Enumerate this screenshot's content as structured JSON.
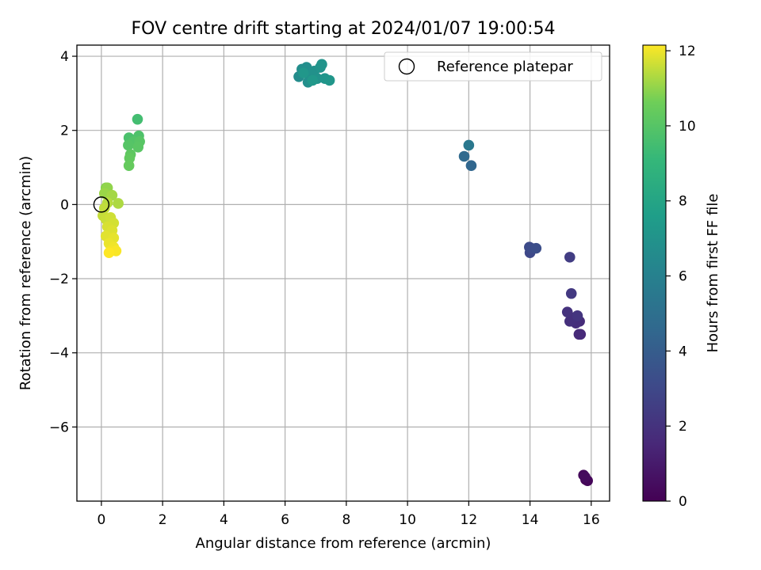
{
  "chart_data": {
    "type": "scatter",
    "title": "FOV centre drift starting at 2024/01/07 19:00:54",
    "xlabel": "Angular distance from reference (arcmin)",
    "ylabel": "Rotation from reference (arcmin)",
    "xlim": [
      -0.8,
      16.6
    ],
    "ylim": [
      -8.0,
      4.3
    ],
    "xticks": [
      0,
      2,
      4,
      6,
      8,
      10,
      12,
      14,
      16
    ],
    "yticks": [
      -6,
      -4,
      -2,
      0,
      2,
      4
    ],
    "ytick_labels": [
      "−6",
      "−4",
      "−2",
      "0",
      "2",
      "4"
    ],
    "grid": true,
    "legend": {
      "position": "top-right",
      "entries": [
        "Reference platepar"
      ]
    },
    "reference_point": {
      "x": 0,
      "y": 0,
      "marker": "open-circle",
      "label": "Reference platepar"
    },
    "colorbar": {
      "label": "Hours from first FF file",
      "colormap": "viridis",
      "range": [
        0,
        12.15
      ],
      "ticks": [
        0,
        2,
        4,
        6,
        8,
        10,
        12
      ]
    },
    "points": [
      {
        "x": 15.82,
        "y": -7.42,
        "hours": 0.1
      },
      {
        "x": 15.88,
        "y": -7.45,
        "hours": 0.2
      },
      {
        "x": 15.75,
        "y": -7.3,
        "hours": 0.3
      },
      {
        "x": 15.8,
        "y": -7.35,
        "hours": 0.4
      },
      {
        "x": 15.65,
        "y": -3.5,
        "hours": 1.5
      },
      {
        "x": 15.6,
        "y": -3.5,
        "hours": 1.6
      },
      {
        "x": 15.62,
        "y": -3.15,
        "hours": 1.7
      },
      {
        "x": 15.5,
        "y": -3.2,
        "hours": 1.8
      },
      {
        "x": 15.45,
        "y": -3.05,
        "hours": 1.85
      },
      {
        "x": 15.3,
        "y": -3.15,
        "hours": 1.9
      },
      {
        "x": 15.22,
        "y": -2.9,
        "hours": 2.0
      },
      {
        "x": 15.55,
        "y": -3.0,
        "hours": 2.1
      },
      {
        "x": 15.35,
        "y": -2.4,
        "hours": 2.3
      },
      {
        "x": 15.3,
        "y": -1.42,
        "hours": 2.5
      },
      {
        "x": 14.0,
        "y": -1.3,
        "hours": 3.0
      },
      {
        "x": 13.98,
        "y": -1.15,
        "hours": 3.1
      },
      {
        "x": 14.05,
        "y": -1.18,
        "hours": 3.2
      },
      {
        "x": 14.2,
        "y": -1.18,
        "hours": 3.3
      },
      {
        "x": 12.08,
        "y": 1.05,
        "hours": 4.5
      },
      {
        "x": 11.85,
        "y": 1.3,
        "hours": 4.7
      },
      {
        "x": 12.0,
        "y": 1.6,
        "hours": 5.5
      },
      {
        "x": 6.45,
        "y": 3.45,
        "hours": 6.6
      },
      {
        "x": 6.55,
        "y": 3.65,
        "hours": 6.7
      },
      {
        "x": 6.7,
        "y": 3.7,
        "hours": 6.75
      },
      {
        "x": 6.75,
        "y": 3.3,
        "hours": 6.8
      },
      {
        "x": 6.85,
        "y": 3.45,
        "hours": 6.85
      },
      {
        "x": 6.95,
        "y": 3.6,
        "hours": 6.9
      },
      {
        "x": 7.05,
        "y": 3.4,
        "hours": 6.95
      },
      {
        "x": 7.15,
        "y": 3.7,
        "hours": 7.0
      },
      {
        "x": 7.2,
        "y": 3.78,
        "hours": 7.05
      },
      {
        "x": 7.3,
        "y": 3.4,
        "hours": 7.1
      },
      {
        "x": 7.45,
        "y": 3.35,
        "hours": 7.15
      },
      {
        "x": 6.6,
        "y": 3.55,
        "hours": 7.2
      },
      {
        "x": 6.9,
        "y": 3.35,
        "hours": 7.25
      },
      {
        "x": 1.18,
        "y": 2.3,
        "hours": 9.5
      },
      {
        "x": 0.9,
        "y": 1.8,
        "hours": 9.7
      },
      {
        "x": 1.22,
        "y": 1.85,
        "hours": 9.8
      },
      {
        "x": 1.05,
        "y": 1.7,
        "hours": 9.9
      },
      {
        "x": 0.88,
        "y": 1.6,
        "hours": 10.0
      },
      {
        "x": 1.25,
        "y": 1.7,
        "hours": 10.05
      },
      {
        "x": 1.2,
        "y": 1.55,
        "hours": 10.1
      },
      {
        "x": 0.95,
        "y": 1.35,
        "hours": 10.2
      },
      {
        "x": 0.92,
        "y": 1.25,
        "hours": 10.3
      },
      {
        "x": 0.9,
        "y": 1.05,
        "hours": 10.4
      },
      {
        "x": 0.15,
        "y": 0.45,
        "hours": 10.9
      },
      {
        "x": 0.2,
        "y": 0.45,
        "hours": 11.0
      },
      {
        "x": 0.1,
        "y": 0.3,
        "hours": 11.1
      },
      {
        "x": 0.35,
        "y": 0.25,
        "hours": 11.2
      },
      {
        "x": 0.55,
        "y": 0.03,
        "hours": 11.3
      },
      {
        "x": 0.2,
        "y": 0.05,
        "hours": 11.4
      },
      {
        "x": 0.1,
        "y": -0.1,
        "hours": 11.5
      },
      {
        "x": 0.05,
        "y": -0.3,
        "hours": 11.55
      },
      {
        "x": 0.15,
        "y": -0.4,
        "hours": 11.6
      },
      {
        "x": 0.3,
        "y": -0.35,
        "hours": 11.65
      },
      {
        "x": 0.4,
        "y": -0.5,
        "hours": 11.7
      },
      {
        "x": 0.2,
        "y": -0.6,
        "hours": 11.75
      },
      {
        "x": 0.35,
        "y": -0.7,
        "hours": 11.8
      },
      {
        "x": 0.15,
        "y": -0.85,
        "hours": 11.85
      },
      {
        "x": 0.4,
        "y": -0.9,
        "hours": 11.9
      },
      {
        "x": 0.25,
        "y": -1.05,
        "hours": 11.95
      },
      {
        "x": 0.4,
        "y": -1.15,
        "hours": 12.0
      },
      {
        "x": 0.3,
        "y": -1.25,
        "hours": 12.05
      },
      {
        "x": 0.48,
        "y": -1.25,
        "hours": 12.1
      },
      {
        "x": 0.25,
        "y": -1.3,
        "hours": 12.15
      }
    ]
  }
}
